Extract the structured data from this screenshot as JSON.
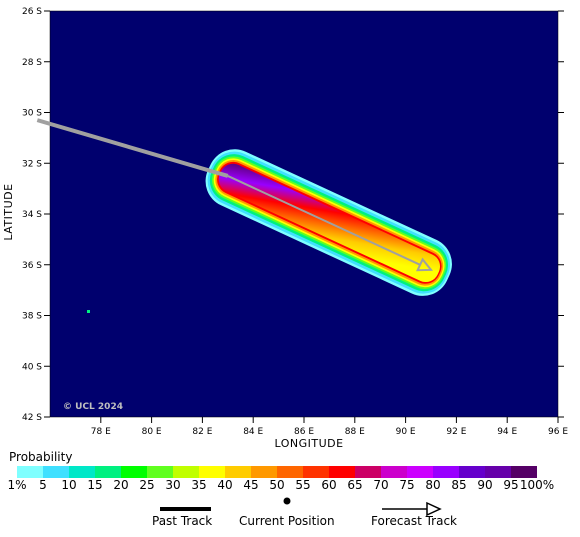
{
  "map": {
    "y_axis_title": "LATITUDE",
    "x_axis_title": "LONGITUDE",
    "lat_ticks": [
      "26 S",
      "28 S",
      "30 S",
      "32 S",
      "34 S",
      "36 S",
      "38 S",
      "40 S",
      "42 S"
    ],
    "lon_ticks": [
      "78 E",
      "80 E",
      "82 E",
      "84 E",
      "86 E",
      "88 E",
      "90 E",
      "92 E",
      "94 E",
      "96 E"
    ],
    "copyright": "© UCL 2024",
    "ocean_color": "#00006e",
    "lon_range": [
      76,
      96
    ],
    "lat_range": [
      -42,
      -26
    ]
  },
  "track": {
    "past": [
      [
        75.5,
        -30.3
      ],
      [
        83.0,
        -32.5
      ]
    ],
    "forecast": [
      [
        83.0,
        -32.5
      ],
      [
        91.0,
        -36.2
      ]
    ],
    "track_color": "#a0a0a0",
    "swath_halfwidth_deg_lat": 0.75
  },
  "legend": {
    "title": "Probability",
    "colors": [
      "#7fffff",
      "#40e0ff",
      "#00e8c8",
      "#00f080",
      "#00ff00",
      "#60ff20",
      "#c0ff00",
      "#ffff00",
      "#ffcc00",
      "#ff9900",
      "#ff6600",
      "#ff3300",
      "#ff0000",
      "#cc0066",
      "#cc00cc",
      "#cc00ff",
      "#9900ff",
      "#6600cc",
      "#6600aa",
      "#550066"
    ],
    "labels": [
      "1%",
      "5",
      "10",
      "15",
      "20",
      "25",
      "30",
      "35",
      "40",
      "45",
      "50",
      "55",
      "60",
      "65",
      "70",
      "75",
      "80",
      "85",
      "90",
      "95",
      "100%"
    ]
  },
  "key": {
    "past_label": "Past Track",
    "current_label": "Current Position",
    "forecast_label": "Forecast Track"
  }
}
